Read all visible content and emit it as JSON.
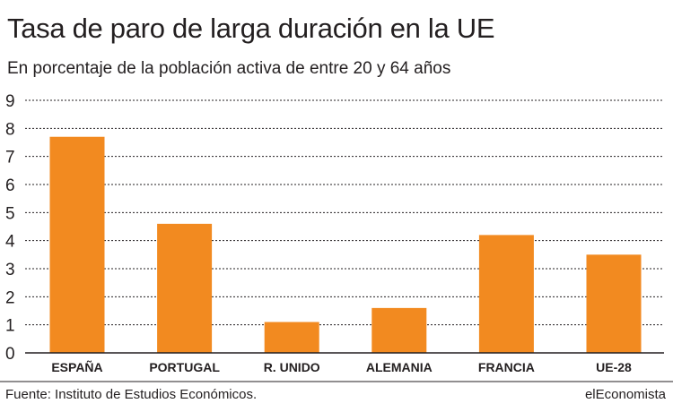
{
  "header": {
    "title": "Tasa de paro de larga duración en la UE",
    "subtitle": "En porcentaje de la población activa de entre 20 y 64 años"
  },
  "footer": {
    "source": "Fuente: Instituto de Estudios Económicos.",
    "brand": "elEconomista"
  },
  "colors": {
    "bar": "#f28a20",
    "grid": "#231f20",
    "text": "#231f20"
  },
  "chart_data": {
    "type": "bar",
    "title": "Tasa de paro de larga duración en la UE",
    "subtitle": "En porcentaje de la población activa de entre 20 y 64 años",
    "xlabel": "",
    "ylabel": "",
    "categories": [
      "ESPAÑA",
      "PORTUGAL",
      "R. UNIDO",
      "ALEMANIA",
      "FRANCIA",
      "UE-28"
    ],
    "values": [
      7.7,
      4.6,
      1.1,
      1.6,
      4.2,
      3.5
    ],
    "ylim": [
      0,
      9
    ],
    "yticks": [
      "0",
      "1",
      "2",
      "3",
      "4",
      "5",
      "6",
      "7",
      "8",
      "9"
    ],
    "grid": true,
    "legend": "none"
  }
}
